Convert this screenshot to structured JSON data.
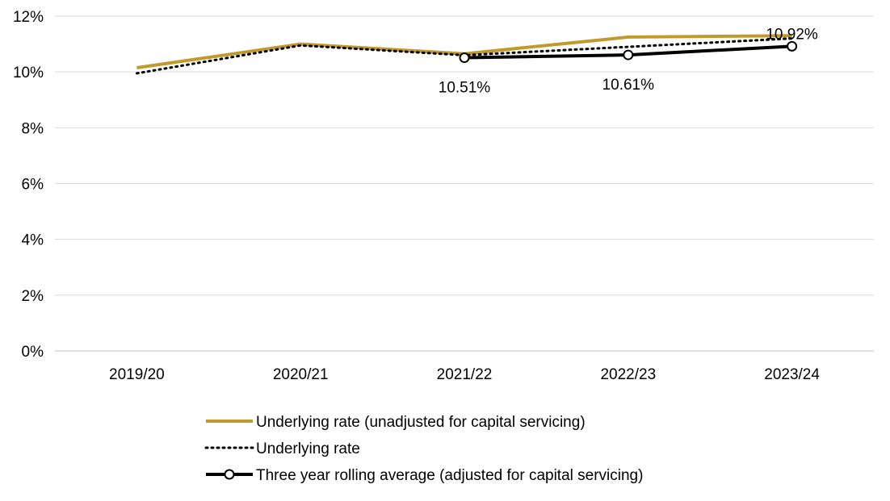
{
  "chart_data": {
    "type": "line",
    "categories": [
      "2019/20",
      "2020/21",
      "2021/22",
      "2022/23",
      "2023/24"
    ],
    "y_ticks": [
      "0%",
      "2%",
      "4%",
      "6%",
      "8%",
      "10%",
      "12%"
    ],
    "ylim": [
      0,
      12
    ],
    "grid": true,
    "legend_position": "bottom",
    "series": [
      {
        "name": "Underlying rate (unadjusted for capital servicing)",
        "values": [
          10.15,
          11.0,
          10.65,
          11.25,
          11.3
        ],
        "color": "#c09a2b",
        "style": "solid"
      },
      {
        "name": "Underlying rate",
        "values": [
          9.95,
          10.95,
          10.6,
          10.9,
          11.2
        ],
        "color": "#000000",
        "style": "dotted"
      },
      {
        "name": "Three year rolling average (adjusted for capital servicing)",
        "values": [
          null,
          null,
          10.51,
          10.61,
          10.92
        ],
        "color": "#000000",
        "style": "solid-markers",
        "data_labels": [
          "",
          "",
          "10.51%",
          "10.61%",
          "10.92%"
        ]
      }
    ]
  }
}
